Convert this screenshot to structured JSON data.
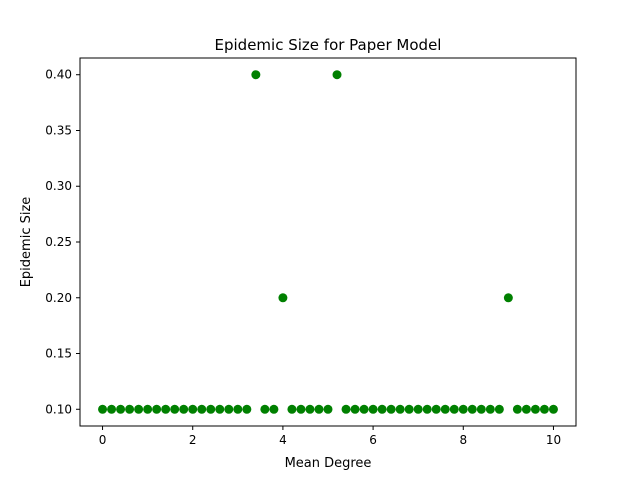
{
  "chart_data": {
    "type": "scatter",
    "title": "Epidemic Size for Paper Model",
    "xlabel": "Mean Degree",
    "ylabel": "Epidemic Size",
    "xlim": [
      -0.5,
      10.5
    ],
    "ylim": [
      0.085,
      0.415
    ],
    "xticks": [
      0,
      2,
      4,
      6,
      8,
      10
    ],
    "yticks": [
      0.1,
      0.15,
      0.2,
      0.25,
      0.3,
      0.35,
      0.4
    ],
    "xtick_labels": [
      "0",
      "2",
      "4",
      "6",
      "8",
      "10"
    ],
    "ytick_labels": [
      "0.10",
      "0.15",
      "0.20",
      "0.25",
      "0.30",
      "0.35",
      "0.40"
    ],
    "grid": false,
    "marker_color": "#008000",
    "series": [
      {
        "x": [
          0.0,
          0.2,
          0.4,
          0.6,
          0.8,
          1.0,
          1.2,
          1.4,
          1.6,
          1.8,
          2.0,
          2.2,
          2.4,
          2.6,
          2.8,
          3.0,
          3.2,
          3.4,
          3.6,
          3.8,
          4.0,
          4.2,
          4.4,
          4.6,
          4.8,
          5.0,
          5.2,
          5.4,
          5.6,
          5.8,
          6.0,
          6.2,
          6.4,
          6.6,
          6.8,
          7.0,
          7.2,
          7.4,
          7.6,
          7.8,
          8.0,
          8.2,
          8.4,
          8.6,
          8.8,
          9.0,
          9.2,
          9.4,
          9.6,
          9.8,
          10.0
        ],
        "y": [
          0.1,
          0.1,
          0.1,
          0.1,
          0.1,
          0.1,
          0.1,
          0.1,
          0.1,
          0.1,
          0.1,
          0.1,
          0.1,
          0.1,
          0.1,
          0.1,
          0.1,
          0.4,
          0.1,
          0.1,
          0.2,
          0.1,
          0.1,
          0.1,
          0.1,
          0.1,
          0.4,
          0.1,
          0.1,
          0.1,
          0.1,
          0.1,
          0.1,
          0.1,
          0.1,
          0.1,
          0.1,
          0.1,
          0.1,
          0.1,
          0.1,
          0.1,
          0.1,
          0.1,
          0.1,
          0.2,
          0.1,
          0.1,
          0.1,
          0.1,
          0.1
        ]
      }
    ]
  }
}
